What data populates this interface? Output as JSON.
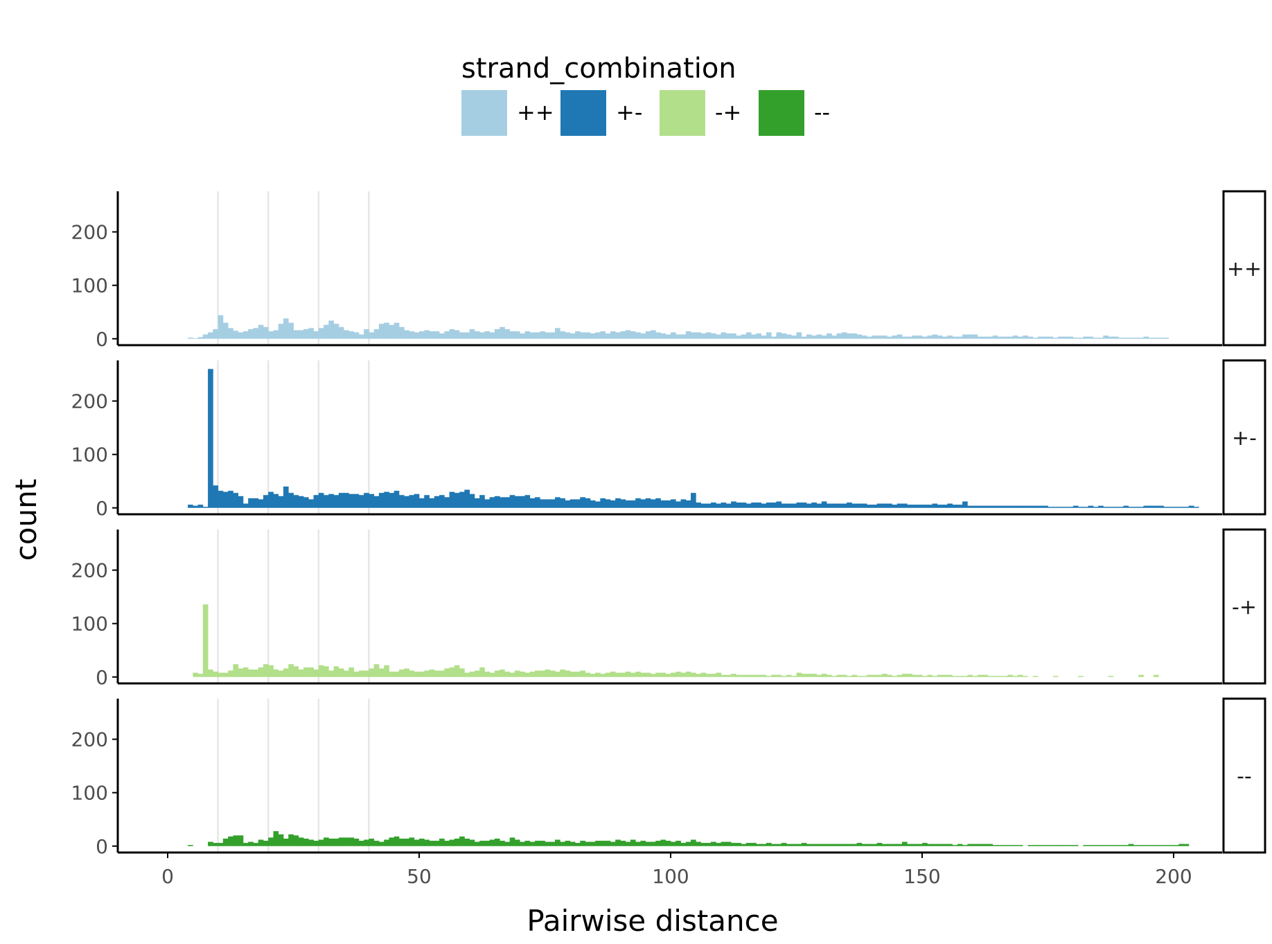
{
  "chart_data": {
    "type": "bar",
    "subtype": "faceted-histogram",
    "bin_width": 1,
    "facet_by": "strand_combination",
    "xlabel": "Pairwise distance",
    "ylabel": "count",
    "xlim": [
      -10,
      210
    ],
    "ylim": [
      -12,
      276
    ],
    "x_ticks": [
      0,
      50,
      100,
      150,
      200
    ],
    "y_ticks": [
      0,
      100,
      200
    ],
    "vlines": [
      10,
      20,
      30,
      40
    ],
    "vline_color": "#e6e6e6",
    "legend": {
      "title": "strand_combination",
      "position": "top",
      "entries": [
        {
          "label": "++",
          "color": "#a6cee3"
        },
        {
          "label": "+-",
          "color": "#1f78b4"
        },
        {
          "label": "-+",
          "color": "#b2df8a"
        },
        {
          "label": "--",
          "color": "#33a02c"
        }
      ]
    },
    "series": [
      {
        "name": "++",
        "color": "#a6cee3",
        "x_start": 4,
        "values": [
          2,
          1,
          3,
          8,
          12,
          18,
          44,
          30,
          20,
          15,
          12,
          14,
          18,
          20,
          26,
          22,
          14,
          16,
          28,
          38,
          30,
          16,
          16,
          18,
          20,
          14,
          20,
          26,
          34,
          28,
          22,
          16,
          14,
          12,
          8,
          18,
          12,
          18,
          28,
          30,
          26,
          30,
          22,
          16,
          14,
          12,
          14,
          16,
          14,
          14,
          10,
          14,
          18,
          16,
          12,
          12,
          18,
          14,
          12,
          14,
          12,
          18,
          22,
          18,
          14,
          14,
          10,
          14,
          12,
          12,
          14,
          12,
          12,
          20,
          14,
          12,
          10,
          14,
          12,
          12,
          10,
          12,
          14,
          10,
          14,
          12,
          14,
          16,
          14,
          12,
          10,
          14,
          16,
          12,
          10,
          8,
          12,
          8,
          8,
          14,
          12,
          12,
          10,
          12,
          10,
          8,
          12,
          10,
          10,
          6,
          8,
          12,
          8,
          10,
          6,
          12,
          4,
          12,
          10,
          8,
          6,
          12,
          4,
          8,
          6,
          8,
          6,
          10,
          6,
          10,
          12,
          10,
          10,
          8,
          6,
          4,
          6,
          6,
          6,
          4,
          6,
          8,
          4,
          4,
          6,
          6,
          4,
          6,
          8,
          6,
          4,
          6,
          4,
          4,
          8,
          8,
          8,
          4,
          4,
          4,
          6,
          4,
          4,
          4,
          6,
          4,
          6,
          4,
          2,
          4,
          4,
          4,
          2,
          4,
          4,
          4,
          2,
          2,
          4,
          4,
          2,
          2,
          6,
          4,
          4,
          2,
          2,
          2,
          2,
          2,
          4,
          2,
          2,
          2,
          2
        ]
      },
      {
        "name": "+-",
        "color": "#1f78b4",
        "x_start": 4,
        "values": [
          6,
          4,
          6,
          2,
          260,
          42,
          32,
          30,
          32,
          28,
          22,
          8,
          18,
          18,
          16,
          24,
          30,
          26,
          22,
          40,
          28,
          24,
          22,
          20,
          16,
          24,
          28,
          24,
          26,
          24,
          28,
          28,
          26,
          26,
          24,
          28,
          26,
          22,
          28,
          30,
          28,
          32,
          24,
          22,
          24,
          26,
          18,
          24,
          18,
          22,
          24,
          20,
          30,
          28,
          30,
          34,
          26,
          18,
          24,
          16,
          20,
          22,
          20,
          20,
          24,
          22,
          22,
          24,
          18,
          20,
          16,
          16,
          16,
          20,
          18,
          14,
          16,
          16,
          20,
          18,
          14,
          12,
          18,
          16,
          14,
          18,
          16,
          14,
          14,
          18,
          16,
          18,
          16,
          18,
          14,
          14,
          16,
          12,
          16,
          14,
          28,
          10,
          8,
          8,
          10,
          8,
          10,
          8,
          12,
          10,
          10,
          8,
          10,
          10,
          8,
          10,
          10,
          12,
          8,
          8,
          8,
          10,
          10,
          8,
          10,
          8,
          12,
          8,
          8,
          8,
          8,
          10,
          8,
          8,
          8,
          6,
          6,
          8,
          8,
          8,
          6,
          8,
          8,
          6,
          6,
          6,
          6,
          6,
          8,
          6,
          6,
          8,
          6,
          6,
          12,
          4,
          4,
          4,
          4,
          4,
          4,
          4,
          4,
          4,
          4,
          4,
          4,
          4,
          4,
          4,
          4,
          2,
          2,
          2,
          2,
          2,
          4,
          2,
          2,
          4,
          2,
          4,
          2,
          2,
          2,
          2,
          4,
          2,
          2,
          2,
          4,
          4,
          4,
          4,
          2,
          2,
          2,
          2,
          2,
          4,
          2
        ]
      },
      {
        "name": "-+",
        "color": "#b2df8a",
        "x_start": 4,
        "values": [
          0,
          8,
          6,
          136,
          14,
          10,
          8,
          8,
          12,
          24,
          16,
          18,
          14,
          14,
          18,
          24,
          22,
          14,
          12,
          16,
          24,
          20,
          14,
          18,
          18,
          14,
          22,
          20,
          12,
          20,
          16,
          12,
          18,
          10,
          12,
          12,
          16,
          24,
          16,
          22,
          10,
          10,
          14,
          16,
          12,
          10,
          10,
          12,
          14,
          12,
          12,
          16,
          18,
          22,
          16,
          8,
          10,
          12,
          18,
          10,
          8,
          12,
          14,
          10,
          8,
          12,
          10,
          8,
          10,
          12,
          12,
          14,
          12,
          10,
          14,
          12,
          10,
          10,
          12,
          8,
          6,
          8,
          6,
          8,
          10,
          8,
          8,
          10,
          8,
          10,
          8,
          8,
          6,
          8,
          8,
          6,
          8,
          10,
          8,
          10,
          8,
          6,
          8,
          6,
          6,
          8,
          4,
          4,
          6,
          4,
          4,
          4,
          4,
          4,
          4,
          2,
          4,
          4,
          2,
          4,
          2,
          8,
          6,
          6,
          6,
          4,
          6,
          4,
          2,
          4,
          4,
          2,
          4,
          2,
          2,
          4,
          4,
          4,
          6,
          4,
          2,
          4,
          6,
          6,
          4,
          4,
          2,
          4,
          2,
          4,
          4,
          4,
          2,
          2,
          2,
          4,
          2,
          4,
          4,
          2,
          2,
          2,
          2,
          4,
          2,
          4,
          2,
          0,
          2,
          0,
          0,
          0,
          2,
          0,
          0,
          0,
          0,
          2,
          0,
          0,
          0,
          0,
          0,
          2,
          0,
          0,
          0,
          0,
          0,
          4,
          0,
          0,
          4,
          0,
          0,
          0
        ]
      },
      {
        "name": "--",
        "color": "#33a02c",
        "x_start": 4,
        "values": [
          2,
          0,
          0,
          0,
          8,
          6,
          6,
          14,
          18,
          20,
          20,
          6,
          8,
          6,
          12,
          10,
          16,
          28,
          22,
          14,
          22,
          20,
          16,
          14,
          12,
          10,
          12,
          16,
          14,
          14,
          16,
          16,
          16,
          14,
          10,
          12,
          14,
          10,
          8,
          12,
          16,
          18,
          14,
          14,
          16,
          12,
          14,
          12,
          10,
          10,
          14,
          10,
          12,
          14,
          18,
          14,
          12,
          8,
          10,
          10,
          12,
          14,
          10,
          8,
          16,
          12,
          8,
          10,
          8,
          10,
          10,
          8,
          8,
          12,
          8,
          10,
          8,
          6,
          10,
          8,
          8,
          10,
          10,
          10,
          8,
          12,
          10,
          8,
          12,
          8,
          10,
          8,
          8,
          10,
          12,
          10,
          8,
          10,
          6,
          8,
          12,
          8,
          6,
          6,
          8,
          6,
          8,
          8,
          6,
          6,
          4,
          6,
          6,
          4,
          4,
          6,
          4,
          4,
          6,
          4,
          4,
          4,
          6,
          4,
          4,
          4,
          4,
          4,
          4,
          4,
          4,
          4,
          4,
          6,
          4,
          4,
          4,
          6,
          4,
          4,
          4,
          4,
          8,
          4,
          4,
          4,
          6,
          4,
          4,
          4,
          4,
          4,
          2,
          4,
          2,
          4,
          4,
          4,
          4,
          4,
          2,
          2,
          2,
          2,
          2,
          2,
          0,
          2,
          2,
          2,
          2,
          2,
          2,
          2,
          2,
          2,
          2,
          0,
          2,
          2,
          2,
          2,
          2,
          2,
          2,
          2,
          2,
          4,
          2,
          2,
          2,
          2,
          2,
          2,
          2,
          2,
          2,
          4,
          4
        ]
      }
    ]
  }
}
